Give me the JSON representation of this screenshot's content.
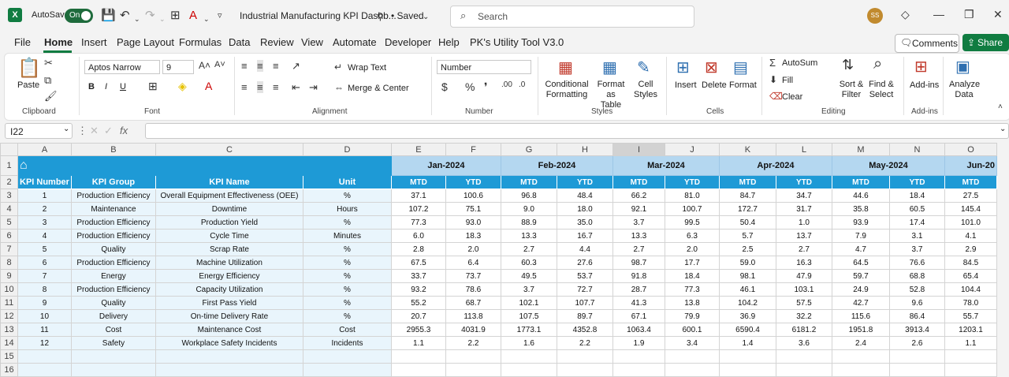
{
  "titlebar": {
    "app_icon": "X",
    "autosave_label": "AutoSave",
    "autosave_state": "On",
    "doc_title": "Industrial Manufacturing KPI Dashb...",
    "saved_status": "• Saved",
    "search_placeholder": "Search",
    "avatar_initials": "SS"
  },
  "menu": [
    "File",
    "Home",
    "Insert",
    "Page Layout",
    "Formulas",
    "Data",
    "Review",
    "View",
    "Automate",
    "Developer",
    "Help",
    "PK's Utility Tool V3.0"
  ],
  "actions": {
    "comments": "Comments",
    "share": "Share"
  },
  "ribbon": {
    "clipboard": {
      "paste": "Paste",
      "label": "Clipboard"
    },
    "font": {
      "name": "Aptos Narrow",
      "size": "9",
      "bold": "B",
      "italic": "I",
      "underline": "U",
      "label": "Font"
    },
    "alignment": {
      "wrap": "Wrap Text",
      "merge": "Merge & Center",
      "label": "Alignment"
    },
    "number": {
      "format": "Number",
      "label": "Number"
    },
    "styles": {
      "conditional": "Conditional",
      "conditional2": "Formatting",
      "format_as": "Format as",
      "format_as2": "Table",
      "cell": "Cell",
      "cell2": "Styles",
      "label": "Styles"
    },
    "cells": {
      "insert": "Insert",
      "delete": "Delete",
      "format": "Format",
      "label": "Cells"
    },
    "editing": {
      "autosum": "AutoSum",
      "fill": "Fill",
      "clear": "Clear",
      "sort": "Sort &",
      "sort2": "Filter",
      "find": "Find &",
      "find2": "Select",
      "label": "Editing"
    },
    "addins": {
      "addins": "Add-ins",
      "label": "Add-ins"
    },
    "analyze": {
      "l1": "Analyze",
      "l2": "Data"
    }
  },
  "formula_bar": {
    "cell_ref": "I22",
    "fx": "fx",
    "content": ""
  },
  "columns": [
    "A",
    "B",
    "C",
    "D",
    "E",
    "F",
    "G",
    "H",
    "I",
    "J",
    "K",
    "L",
    "M",
    "N",
    "O"
  ],
  "rows_numbers": [
    "1",
    "2",
    "3",
    "4",
    "5",
    "6",
    "7",
    "8",
    "9",
    "10",
    "11",
    "12",
    "13",
    "14",
    "15",
    "16"
  ],
  "months": [
    "Jan-2024",
    "Feb-2024",
    "Mar-2024",
    "Apr-2024",
    "May-2024",
    "Jun-20"
  ],
  "headers": {
    "kpi_number": "KPI Number",
    "kpi_group": "KPI Group",
    "kpi_name": "KPI Name",
    "unit": "Unit",
    "mtd": "MTD",
    "ytd": "YTD"
  },
  "table": [
    [
      "1",
      "Production Efficiency",
      "Overall Equipment Effectiveness (OEE)",
      "%",
      "37.1",
      "100.6",
      "96.8",
      "48.4",
      "66.2",
      "81.0",
      "84.7",
      "34.7",
      "44.6",
      "18.4",
      "27.5"
    ],
    [
      "2",
      "Maintenance",
      "Downtime",
      "Hours",
      "107.2",
      "75.1",
      "9.0",
      "18.0",
      "92.1",
      "100.7",
      "172.7",
      "31.7",
      "35.8",
      "60.5",
      "145.4"
    ],
    [
      "3",
      "Production Efficiency",
      "Production Yield",
      "%",
      "77.3",
      "93.0",
      "88.9",
      "35.0",
      "3.7",
      "99.5",
      "50.4",
      "1.0",
      "93.9",
      "17.4",
      "101.0"
    ],
    [
      "4",
      "Production Efficiency",
      "Cycle Time",
      "Minutes",
      "6.0",
      "18.3",
      "13.3",
      "16.7",
      "13.3",
      "6.3",
      "5.7",
      "13.7",
      "7.9",
      "3.1",
      "4.1"
    ],
    [
      "5",
      "Quality",
      "Scrap Rate",
      "%",
      "2.8",
      "2.0",
      "2.7",
      "4.4",
      "2.7",
      "2.0",
      "2.5",
      "2.7",
      "4.7",
      "3.7",
      "2.9"
    ],
    [
      "6",
      "Production Efficiency",
      "Machine Utilization",
      "%",
      "67.5",
      "6.4",
      "60.3",
      "27.6",
      "98.7",
      "17.7",
      "59.0",
      "16.3",
      "64.5",
      "76.6",
      "84.5"
    ],
    [
      "7",
      "Energy",
      "Energy Efficiency",
      "%",
      "33.7",
      "73.7",
      "49.5",
      "53.7",
      "91.8",
      "18.4",
      "98.1",
      "47.9",
      "59.7",
      "68.8",
      "65.4"
    ],
    [
      "8",
      "Production Efficiency",
      "Capacity Utilization",
      "%",
      "93.2",
      "78.6",
      "3.7",
      "72.7",
      "28.7",
      "77.3",
      "46.1",
      "103.1",
      "24.9",
      "52.8",
      "104.4"
    ],
    [
      "9",
      "Quality",
      "First Pass Yield",
      "%",
      "55.2",
      "68.7",
      "102.1",
      "107.7",
      "41.3",
      "13.8",
      "104.2",
      "57.5",
      "42.7",
      "9.6",
      "78.0"
    ],
    [
      "10",
      "Delivery",
      "On-time Delivery Rate",
      "%",
      "20.7",
      "113.8",
      "107.5",
      "89.7",
      "67.1",
      "79.9",
      "36.9",
      "32.2",
      "115.6",
      "86.4",
      "55.7"
    ],
    [
      "11",
      "Cost",
      "Maintenance Cost",
      "Cost",
      "2955.3",
      "4031.9",
      "1773.1",
      "4352.8",
      "1063.4",
      "600.1",
      "6590.4",
      "6181.2",
      "1951.8",
      "3913.4",
      "1203.1"
    ],
    [
      "12",
      "Safety",
      "Workplace Safety Incidents",
      "Incidents",
      "1.1",
      "2.2",
      "1.6",
      "2.2",
      "1.9",
      "3.4",
      "1.4",
      "3.6",
      "2.4",
      "2.6",
      "1.1"
    ]
  ],
  "colors": {
    "excel_green": "#107c41",
    "header_blue": "#1e9ad6",
    "month_blue": "#b4d7f0",
    "row_light": "#e9f5fc"
  }
}
